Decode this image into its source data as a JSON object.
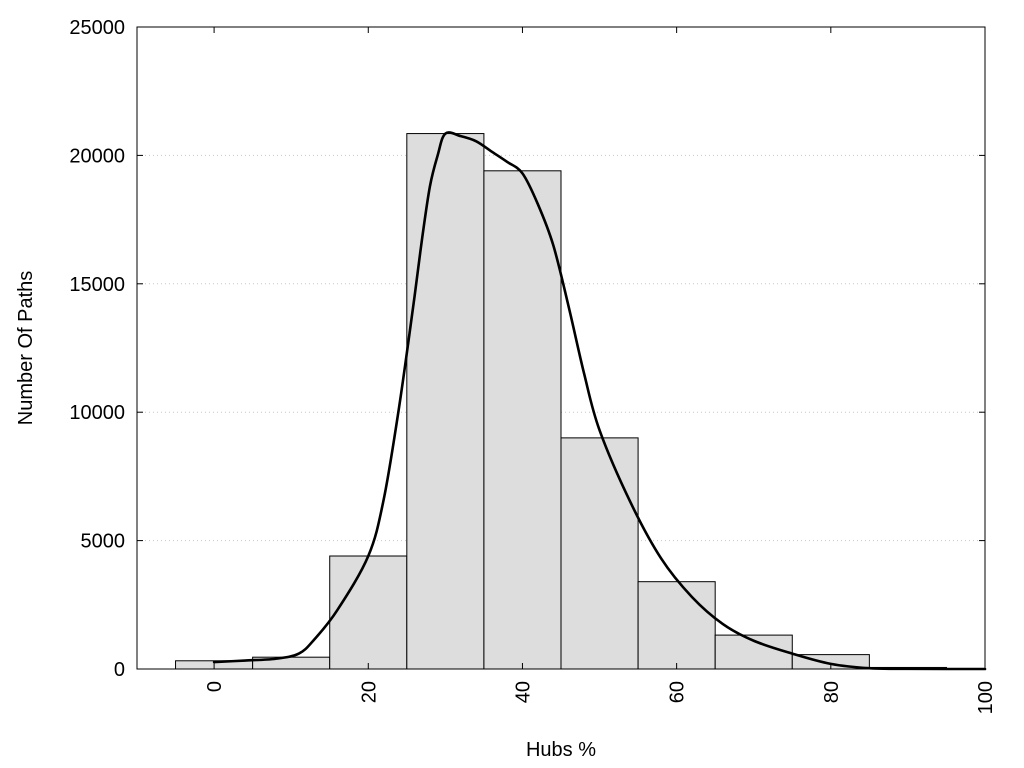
{
  "chart_data": {
    "type": "bar",
    "title": "",
    "xlabel": "Hubs %",
    "ylabel": "Number Of Paths",
    "xlim": [
      -10,
      100
    ],
    "ylim": [
      0,
      25000
    ],
    "grid": true,
    "x_ticks": [
      0,
      20,
      40,
      60,
      80,
      100
    ],
    "y_ticks": [
      0,
      5000,
      10000,
      15000,
      20000,
      25000
    ],
    "bin_width": 10,
    "bin_centers": [
      0,
      10,
      20,
      30,
      40,
      50,
      60,
      70,
      80,
      90
    ],
    "values": [
      320,
      460,
      4400,
      20850,
      19400,
      9000,
      3400,
      1320,
      560,
      60
    ],
    "curve": {
      "x": [
        0,
        4,
        8,
        11,
        13,
        16,
        20,
        22,
        24,
        26,
        27,
        28,
        29,
        30,
        32,
        34,
        36,
        38,
        40,
        42,
        44,
        46,
        48,
        50,
        54,
        58,
        62,
        66,
        70,
        75,
        80,
        85,
        90,
        95,
        100
      ],
      "y": [
        270,
        330,
        400,
        600,
        1150,
        2300,
        4400,
        6600,
        10200,
        14500,
        16800,
        18800,
        20000,
        20850,
        20750,
        20550,
        20150,
        19750,
        19300,
        18100,
        16500,
        14100,
        11500,
        9300,
        6500,
        4300,
        2800,
        1750,
        1100,
        600,
        200,
        30,
        5,
        0,
        0
      ]
    }
  }
}
